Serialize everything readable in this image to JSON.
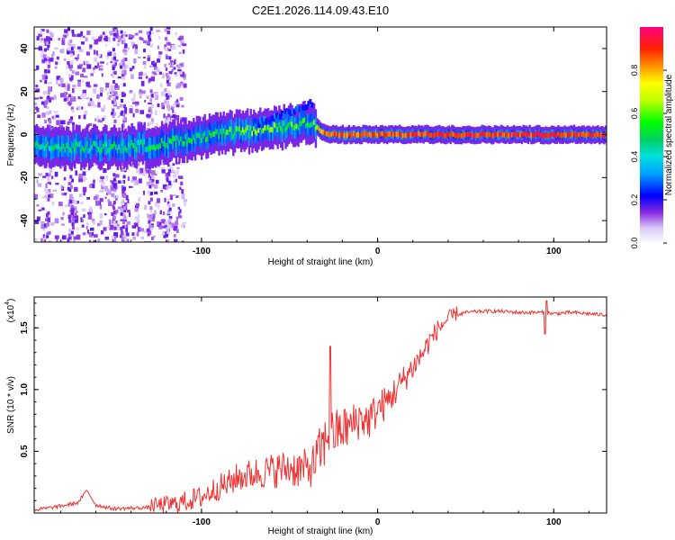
{
  "title": "C2E1.2026.114.09.43.E10",
  "chart_data": [
    {
      "type": "heatmap",
      "title": "C2E1.2026.114.09.43.E10",
      "xlabel": "Height of straight line (km)",
      "ylabel": "Frequency (Hz)",
      "xlim": [
        -195,
        130
      ],
      "ylim": [
        -50,
        50
      ],
      "xticks": [
        -100,
        0,
        100
      ],
      "yticks": [
        -40,
        -20,
        0,
        20,
        40
      ],
      "xtick_labels": [
        "-100",
        "0",
        "100"
      ],
      "ytick_labels": [
        "-40",
        "-20",
        "0",
        "20",
        "40"
      ],
      "ridge": {
        "x": [
          -195,
          -160,
          -130,
          -110,
          -90,
          -70,
          -55,
          -45,
          -38,
          -33,
          -30,
          -20,
          -10,
          0,
          10,
          30,
          60,
          100,
          130
        ],
        "freq": [
          -6,
          -6,
          -5,
          -3,
          0,
          2,
          3,
          5,
          6,
          2,
          0,
          0,
          0,
          0,
          0,
          0,
          0,
          0,
          0
        ],
        "amplitude": [
          0.45,
          0.48,
          0.5,
          0.5,
          0.55,
          0.6,
          0.6,
          0.55,
          0.5,
          0.8,
          0.85,
          0.85,
          0.85,
          0.85,
          0.88,
          0.9,
          0.9,
          0.9,
          0.9
        ]
      },
      "colorbar": {
        "label": "Normalized spectral amplitude",
        "range": [
          0,
          1
        ],
        "ticks": [
          0.0,
          0.2,
          0.4,
          0.6,
          0.8
        ],
        "tick_labels": [
          "0.0",
          "0.2",
          "0.4",
          "0.6",
          "0.8"
        ]
      }
    },
    {
      "type": "line",
      "xlabel": "Height of straight line (km)",
      "ylabel": "SNR (10 * v/v)",
      "scale_label": "(x10",
      "scale_exponent": "4",
      "scale_close": ")",
      "xlim": [
        -195,
        130
      ],
      "ylim": [
        0,
        1.75
      ],
      "xticks": [
        -100,
        0,
        100
      ],
      "yticks": [
        0.5,
        1.0,
        1.5
      ],
      "xtick_labels": [
        "-100",
        "0",
        "100"
      ],
      "ytick_labels": [
        "0.5",
        "1.0",
        "1.5"
      ],
      "color": "#ee3333",
      "series": [
        {
          "name": "SNR",
          "x": [
            -195,
            -180,
            -170,
            -165,
            -160,
            -150,
            -130,
            -115,
            -100,
            -90,
            -85,
            -80,
            -70,
            -60,
            -50,
            -40,
            -35,
            -30,
            -28,
            -25,
            -20,
            -15,
            -10,
            -5,
            0,
            5,
            10,
            15,
            20,
            25,
            30,
            35,
            40,
            45,
            50,
            60,
            70,
            80,
            90,
            95,
            100,
            110,
            120,
            130
          ],
          "y": [
            0.02,
            0.05,
            0.08,
            0.18,
            0.06,
            0.03,
            0.04,
            0.05,
            0.1,
            0.18,
            0.2,
            0.25,
            0.28,
            0.3,
            0.32,
            0.3,
            0.36,
            0.5,
            0.6,
            0.58,
            0.62,
            0.65,
            0.72,
            0.7,
            0.8,
            0.85,
            0.95,
            1.05,
            1.15,
            1.25,
            1.38,
            1.48,
            1.55,
            1.6,
            1.62,
            1.63,
            1.63,
            1.62,
            1.62,
            1.62,
            1.61,
            1.62,
            1.61,
            1.6
          ]
        }
      ]
    }
  ]
}
